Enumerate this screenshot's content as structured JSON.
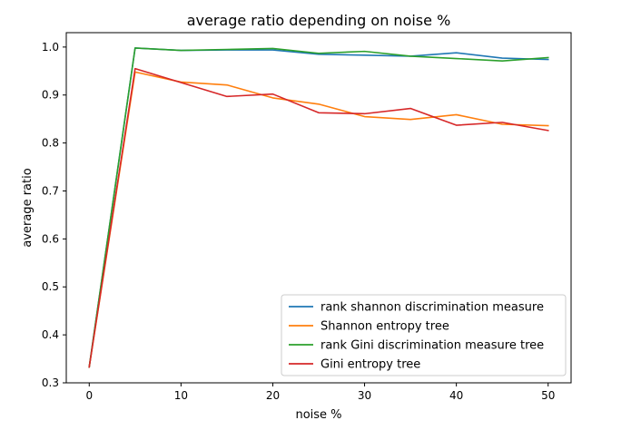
{
  "chart_data": {
    "type": "line",
    "title": "average ratio depending on noise %",
    "xlabel": "noise %",
    "ylabel": "average ratio",
    "xlim": [
      -2.5,
      52.5
    ],
    "ylim": [
      0.3,
      1.03
    ],
    "x_ticks": [
      0,
      10,
      20,
      30,
      40,
      50
    ],
    "y_ticks": [
      0.3,
      0.4,
      0.5,
      0.6,
      0.7,
      0.8,
      0.9,
      1.0
    ],
    "grid": false,
    "legend_position": "lower-right",
    "x": [
      0,
      5,
      10,
      15,
      20,
      25,
      30,
      35,
      40,
      45,
      50
    ],
    "series": [
      {
        "name": "rank shannon discrimination measure",
        "color": "#1f77b4",
        "values": [
          0.333,
          0.998,
          0.993,
          0.994,
          0.994,
          0.985,
          0.983,
          0.981,
          0.988,
          0.977,
          0.974
        ]
      },
      {
        "name": "Shannon entropy tree",
        "color": "#ff7f0e",
        "values": [
          0.333,
          0.948,
          0.927,
          0.921,
          0.894,
          0.881,
          0.855,
          0.849,
          0.859,
          0.839,
          0.836
        ]
      },
      {
        "name": "rank Gini discrimination measure tree",
        "color": "#2ca02c",
        "values": [
          0.333,
          0.998,
          0.993,
          0.995,
          0.997,
          0.987,
          0.991,
          0.981,
          0.976,
          0.971,
          0.978
        ]
      },
      {
        "name": "Gini entropy tree",
        "color": "#d62728",
        "values": [
          0.333,
          0.955,
          0.926,
          0.897,
          0.902,
          0.863,
          0.861,
          0.872,
          0.837,
          0.843,
          0.826
        ]
      }
    ]
  }
}
